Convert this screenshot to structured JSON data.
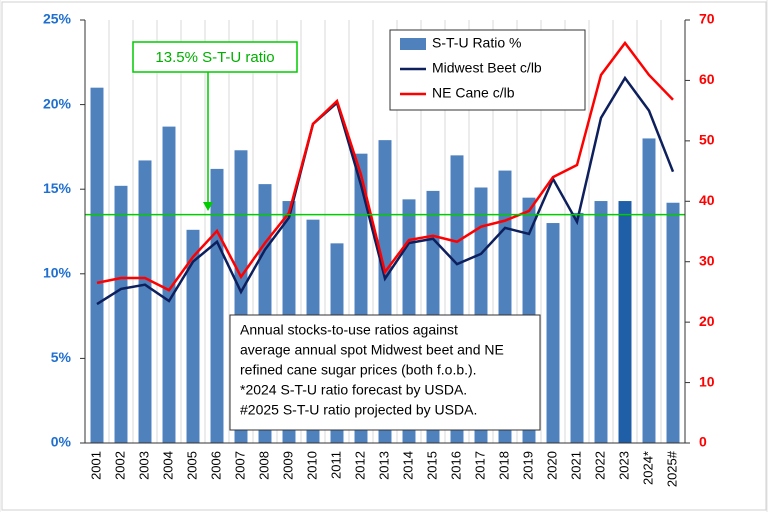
{
  "chart_data": {
    "type": "bar-line",
    "categories": [
      "2001",
      "2002",
      "2003",
      "2004",
      "2005",
      "2006",
      "2007",
      "2008",
      "2009",
      "2010",
      "2011",
      "2012",
      "2013",
      "2014",
      "2015",
      "2016",
      "2017",
      "2018",
      "2019",
      "2020",
      "2021",
      "2022",
      "2023",
      "2024*",
      "2025#"
    ],
    "series": [
      {
        "name": "S-T-U Ratio %",
        "type": "bar",
        "axis": "y",
        "color": "#4f81bd",
        "bar_colors": [
          "#4f81bd",
          "#4f81bd",
          "#4f81bd",
          "#4f81bd",
          "#4f81bd",
          "#4f81bd",
          "#4f81bd",
          "#4f81bd",
          "#4f81bd",
          "#4f81bd",
          "#4f81bd",
          "#4f81bd",
          "#4f81bd",
          "#4f81bd",
          "#4f81bd",
          "#4f81bd",
          "#4f81bd",
          "#4f81bd",
          "#4f81bd",
          "#4f81bd",
          "#4f81bd",
          "#4f81bd",
          "#1f5fa8",
          "#4f81bd",
          "#4f81bd"
        ],
        "values": [
          21.0,
          15.2,
          16.7,
          18.7,
          12.6,
          16.2,
          17.3,
          15.3,
          14.3,
          13.2,
          11.8,
          17.1,
          17.9,
          14.4,
          14.9,
          17.0,
          15.1,
          16.1,
          14.5,
          13.0,
          13.6,
          14.3,
          14.3,
          18.0,
          14.2
        ]
      },
      {
        "name": "Midwest Beet c/lb",
        "type": "line",
        "axis": "y2",
        "color": "#0d1f5c",
        "values": [
          23,
          25.5,
          26.2,
          23.5,
          30,
          33.3,
          25,
          32,
          37.3,
          52.8,
          56.3,
          42.7,
          27.2,
          33.1,
          33.8,
          29.6,
          31.3,
          35.6,
          34.6,
          43.7,
          36.6,
          53.8,
          60.4,
          55,
          44.9
        ]
      },
      {
        "name": "NE Cane c/lb",
        "type": "line",
        "axis": "y2",
        "color": "#ff0000",
        "values": [
          26.5,
          27.3,
          27.3,
          25.3,
          30.8,
          35.1,
          27.5,
          33.1,
          38.1,
          52.8,
          56.6,
          44.4,
          28.3,
          33.6,
          34.3,
          33.3,
          35.8,
          36.8,
          38.4,
          44,
          46,
          60.9,
          66.2,
          60.9,
          56.8
        ]
      }
    ],
    "ylim": [
      0,
      25
    ],
    "yticks": [
      {
        "value": 0,
        "label": "0%"
      },
      {
        "value": 5,
        "label": "5%"
      },
      {
        "value": 10,
        "label": "10%"
      },
      {
        "value": 15,
        "label": "15%"
      },
      {
        "value": 20,
        "label": "20%"
      },
      {
        "value": 25,
        "label": "25%"
      }
    ],
    "y2lim": [
      0,
      70
    ],
    "y2ticks": [
      0,
      10,
      20,
      30,
      40,
      50,
      60,
      70
    ],
    "reference_line": {
      "value": 13.5,
      "color": "#00cc00"
    },
    "reference_label": "13.5% S-T-U ratio",
    "note_lines": [
      "Annual stocks-to-use ratios against",
      "average annual spot Midwest beet and NE",
      "refined cane sugar prices (both f.o.b.).",
      "*2024 S-T-U ratio forecast by USDA.",
      "#2025 S-T-U ratio projected by USDA."
    ]
  }
}
